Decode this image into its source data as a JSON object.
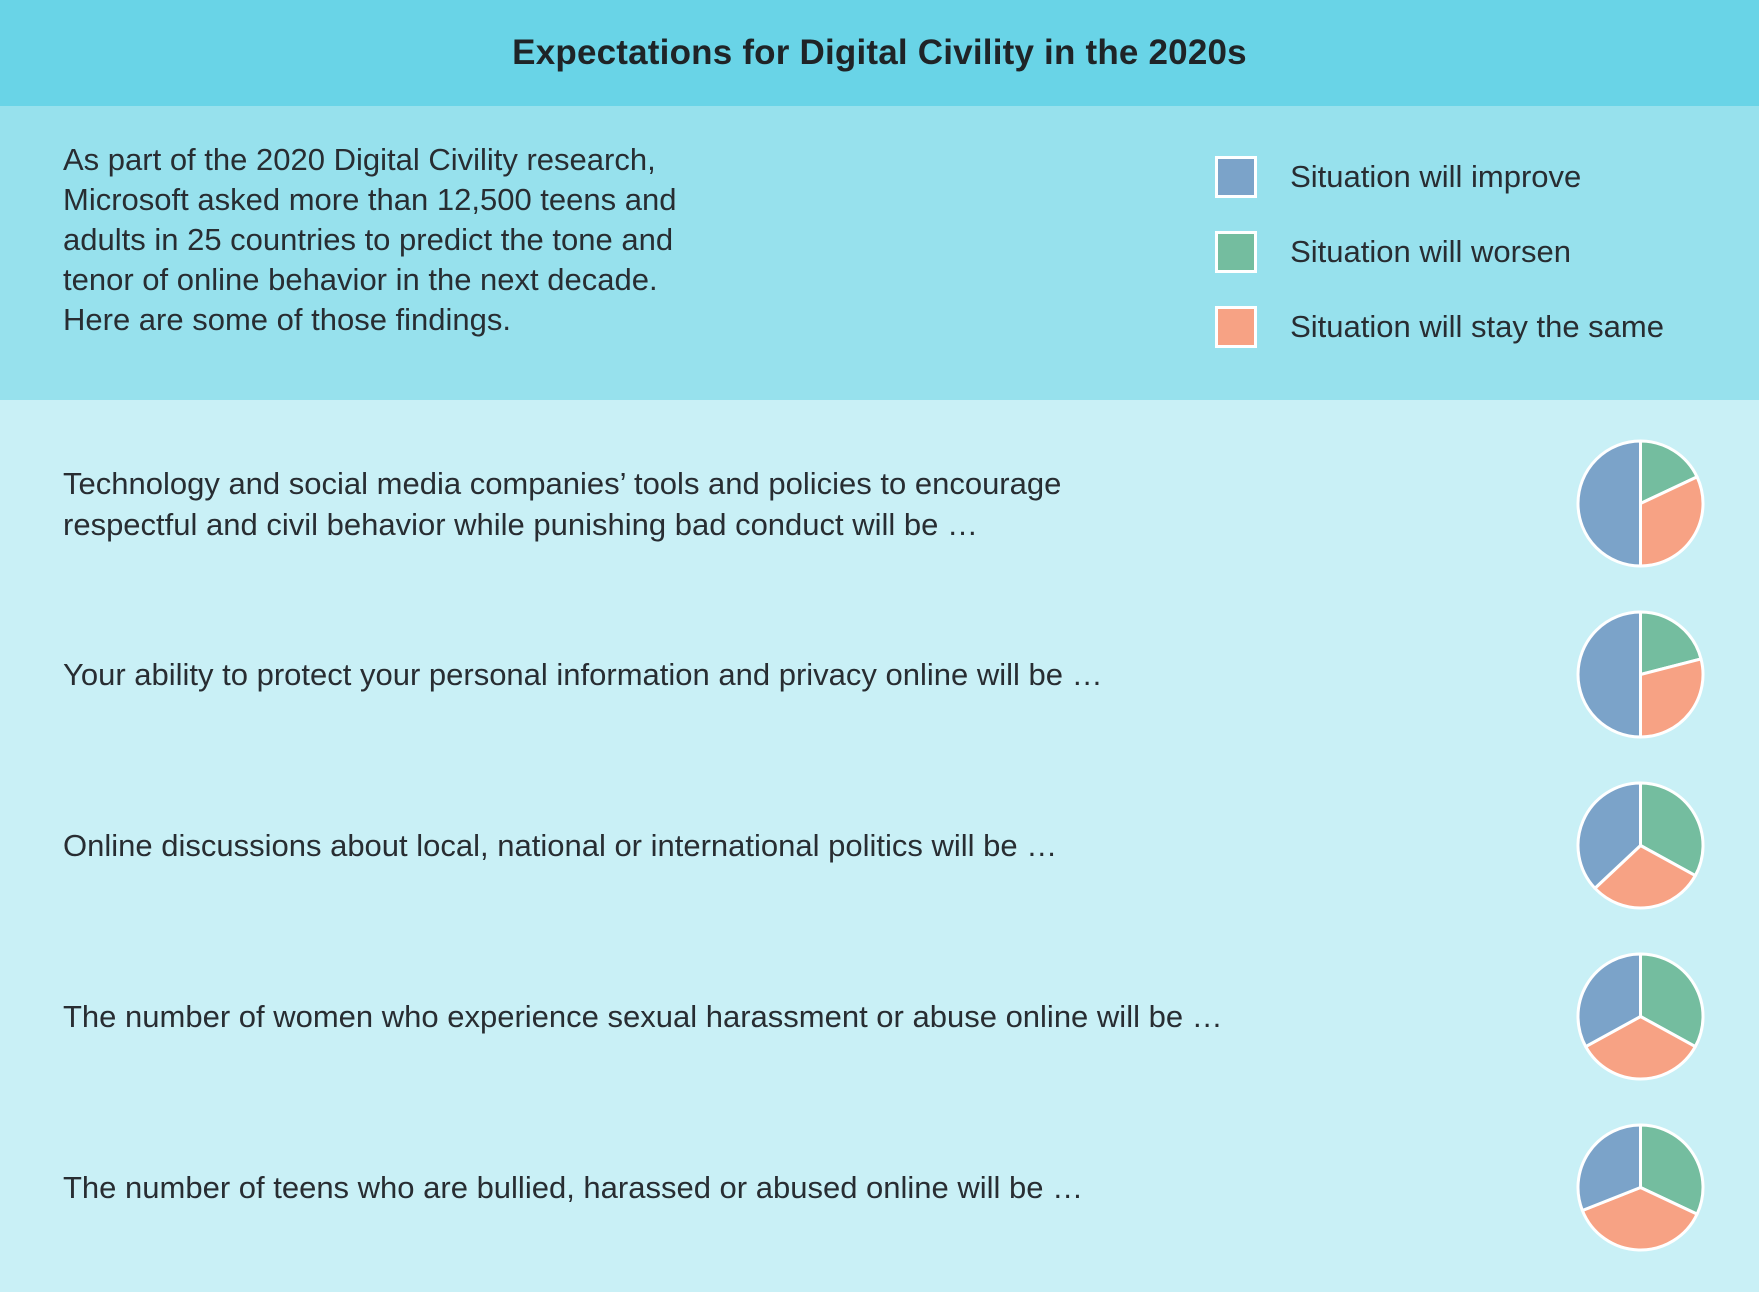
{
  "title": "Expectations for Digital Civility in the 2020s",
  "intro": "As part of the 2020 Digital Civility research,\nMicrosoft asked more than 12,500 teens and\nadults in 25 countries to predict the tone and\ntenor of online behavior in the next decade.\nHere are some of those findings.",
  "colors": {
    "improve": "#7ba3c9",
    "worsen": "#74bd9f",
    "same": "#f7a284",
    "header_bg": "#69d4e7",
    "intro_bg": "#97e1ed",
    "rows_bg": "#c9f0f6",
    "text": "#282d32"
  },
  "legend": {
    "items": [
      {
        "key": "improve",
        "label": "Situation will improve"
      },
      {
        "key": "worsen",
        "label": "Situation will worsen"
      },
      {
        "key": "same",
        "label": "Situation will stay the same"
      }
    ]
  },
  "chart_data": {
    "type": "pie",
    "value_unit": "percent",
    "values_note": "estimated from slice angles; no numeric labels shown in image",
    "slice_order_clockwise_from_top": [
      "worsen",
      "same",
      "improve"
    ],
    "series_labels": {
      "improve": "Situation will improve",
      "worsen": "Situation will worsen",
      "same": "Situation will stay the same"
    },
    "pies": [
      {
        "statement": "Technology and social media companies’ tools and policies to encourage\nrespectful and civil behavior while punishing bad conduct will be …",
        "values": {
          "improve": 50,
          "worsen": 18,
          "same": 32
        }
      },
      {
        "statement": "Your ability to protect your personal information and privacy online will be …",
        "values": {
          "improve": 50,
          "worsen": 21,
          "same": 29
        }
      },
      {
        "statement": "Online discussions about local, national or international politics will be …",
        "values": {
          "improve": 37,
          "worsen": 33,
          "same": 30
        }
      },
      {
        "statement": "The number of women who experience sexual harassment or abuse online will be …",
        "values": {
          "improve": 33,
          "worsen": 33,
          "same": 34
        }
      },
      {
        "statement": "The number of teens who are bullied, harassed or abused online will be …",
        "values": {
          "improve": 31,
          "worsen": 32,
          "same": 37
        }
      }
    ]
  }
}
